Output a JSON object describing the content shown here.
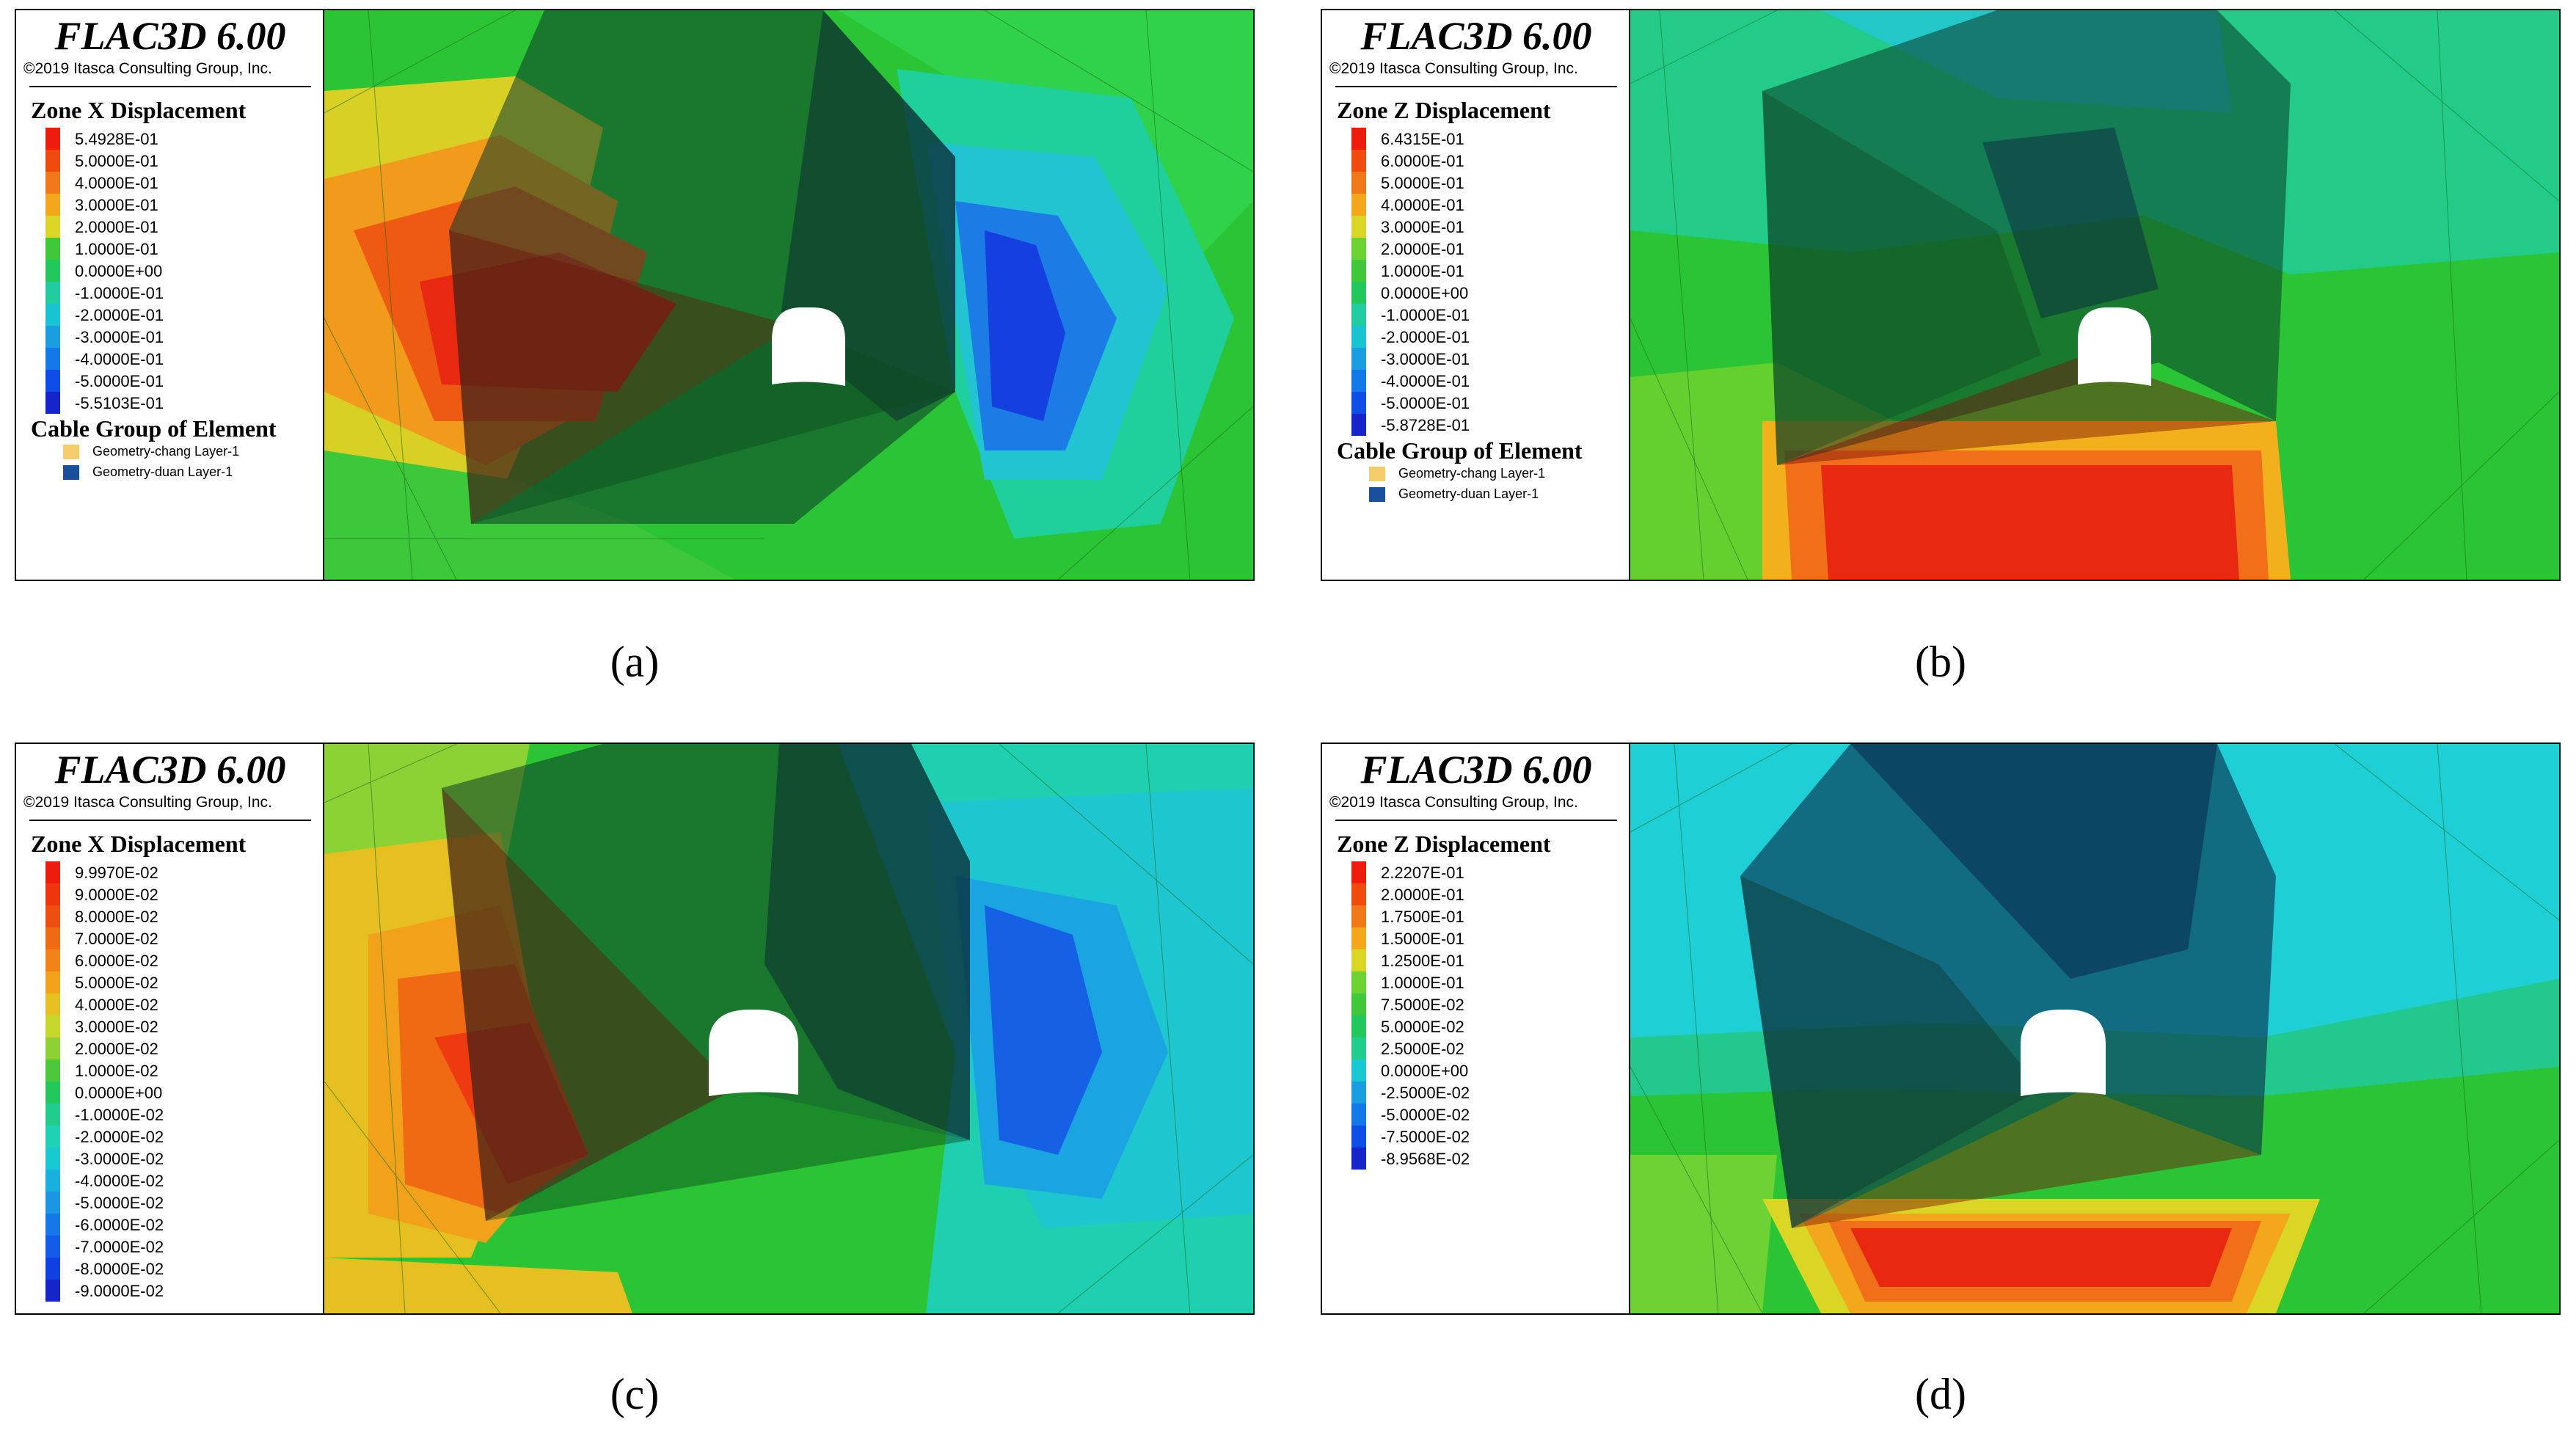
{
  "panels": [
    {
      "app_title": "FLAC3D 6.00",
      "copyright": "©2019 Itasca Consulting Group, Inc.",
      "legend_title": "Zone X Displacement",
      "scale_labels": [
        "5.4928E-01",
        "5.0000E-01",
        "4.0000E-01",
        "3.0000E-01",
        "2.0000E-01",
        "1.0000E-01",
        "0.0000E+00",
        "-1.0000E-01",
        "-2.0000E-01",
        "-3.0000E-01",
        "-4.0000E-01",
        "-5.0000E-01",
        "-5.5103E-01"
      ],
      "scale_colors": [
        "#ee1c0c",
        "#f04a0e",
        "#f07818",
        "#f2a81a",
        "#d9d626",
        "#3ec83a",
        "#22c85c",
        "#20cda0",
        "#18c4d2",
        "#1a9ee0",
        "#1478e8",
        "#0e4ee6",
        "#1624cc"
      ],
      "cable_title": "Cable Group of Element",
      "cable_items": [
        {
          "label": "Geometry-chang Layer-1",
          "color": "#f3cc6c"
        },
        {
          "label": "Geometry-duan Layer-1",
          "color": "#1a4f9c"
        }
      ],
      "caption": "(a)"
    },
    {
      "app_title": "FLAC3D 6.00",
      "copyright": "©2019 Itasca Consulting Group, Inc.",
      "legend_title": "Zone Z Displacement",
      "scale_labels": [
        "6.4315E-01",
        "6.0000E-01",
        "5.0000E-01",
        "4.0000E-01",
        "3.0000E-01",
        "2.0000E-01",
        "1.0000E-01",
        "0.0000E+00",
        "-1.0000E-01",
        "-2.0000E-01",
        "-3.0000E-01",
        "-4.0000E-01",
        "-5.0000E-01",
        "-5.8728E-01"
      ],
      "scale_colors": [
        "#ee1c0c",
        "#f04a0e",
        "#f07818",
        "#f2a81a",
        "#d9d626",
        "#6fd234",
        "#3ec83a",
        "#22c85c",
        "#20cda0",
        "#18c4d2",
        "#1a9ee0",
        "#1478e8",
        "#0e4ee6",
        "#1624cc"
      ],
      "cable_title": "Cable Group of Element",
      "cable_items": [
        {
          "label": "Geometry-chang Layer-1",
          "color": "#f3cc6c"
        },
        {
          "label": "Geometry-duan Layer-1",
          "color": "#1a4f9c"
        }
      ],
      "caption": "(b)"
    },
    {
      "app_title": "FLAC3D 6.00",
      "copyright": "©2019 Itasca Consulting Group, Inc.",
      "legend_title": "Zone X Displacement",
      "scale_labels": [
        "9.9970E-02",
        "9.0000E-02",
        "8.0000E-02",
        "7.0000E-02",
        "6.0000E-02",
        "5.0000E-02",
        "4.0000E-02",
        "3.0000E-02",
        "2.0000E-02",
        "1.0000E-02",
        "0.0000E+00",
        "-1.0000E-02",
        "-2.0000E-02",
        "-3.0000E-02",
        "-4.0000E-02",
        "-5.0000E-02",
        "-6.0000E-02",
        "-7.0000E-02",
        "-8.0000E-02",
        "-9.0000E-02"
      ],
      "scale_colors": [
        "#ee1c0c",
        "#f0340e",
        "#f04e10",
        "#f06a14",
        "#f08418",
        "#f2a21a",
        "#e6c020",
        "#c6d62a",
        "#8cd234",
        "#4cc83a",
        "#22c85c",
        "#20cd8c",
        "#1ed2b4",
        "#18c8d2",
        "#18b0dc",
        "#1a96e2",
        "#1678e8",
        "#125ce8",
        "#0e40e2",
        "#1624cc"
      ],
      "cable_title": "",
      "cable_items": [],
      "caption": "(c)"
    },
    {
      "app_title": "FLAC3D 6.00",
      "copyright": "©2019 Itasca Consulting Group, Inc.",
      "legend_title": "Zone Z Displacement",
      "scale_labels": [
        "2.2207E-01",
        "2.0000E-01",
        "1.7500E-01",
        "1.5000E-01",
        "1.2500E-01",
        "1.0000E-01",
        "7.5000E-02",
        "5.0000E-02",
        "2.5000E-02",
        "0.0000E+00",
        "-2.5000E-02",
        "-5.0000E-02",
        "-7.5000E-02",
        "-8.9568E-02"
      ],
      "scale_colors": [
        "#ee1c0c",
        "#f04a0e",
        "#f07818",
        "#f2a81a",
        "#d9d626",
        "#6fd234",
        "#3ec83a",
        "#22c85c",
        "#20cd8c",
        "#18c8d2",
        "#1a9ee0",
        "#1478e8",
        "#0e4ee6",
        "#1624cc"
      ],
      "cable_title": "",
      "cable_items": [],
      "caption": "(d)"
    }
  ]
}
